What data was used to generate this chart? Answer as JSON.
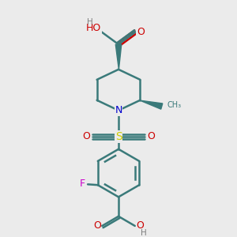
{
  "background_color": "#ebebeb",
  "atom_colors": {
    "C": "#3a7a7a",
    "N": "#0000cc",
    "O": "#cc0000",
    "S": "#cccc00",
    "F": "#cc00cc",
    "H": "#808080"
  },
  "bond_color": "#3a7a7a",
  "bond_lw": 1.8,
  "figsize": [
    3.0,
    3.0
  ],
  "dpi": 100
}
